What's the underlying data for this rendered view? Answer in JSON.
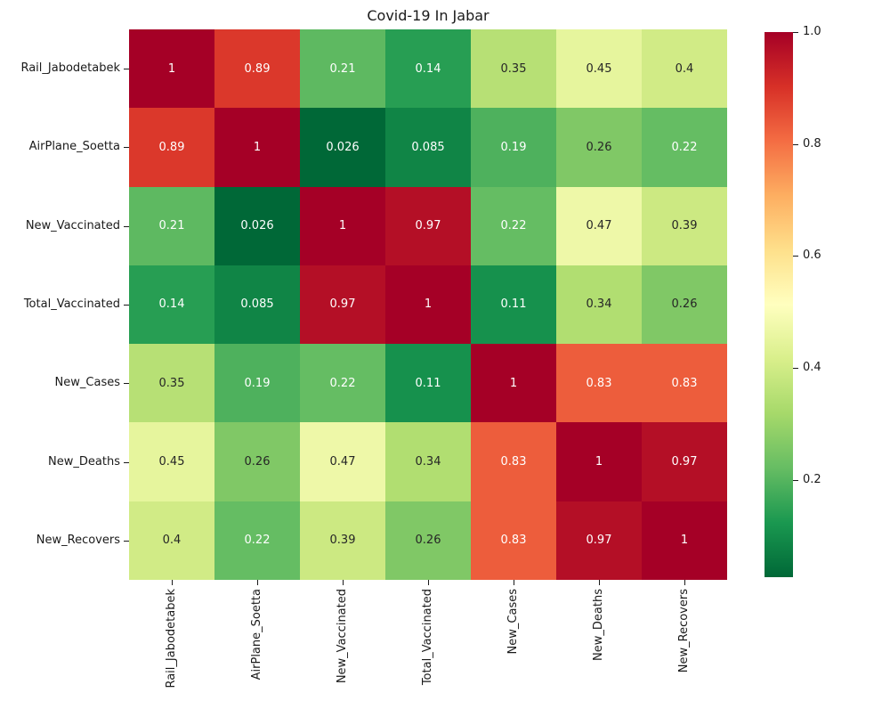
{
  "title": "Covid-19 In Jabar",
  "colors": {
    "background": "#ffffff",
    "axis_text": "#1a1a1a",
    "annotation_dark": "#262626",
    "annotation_light": "#ffffff"
  },
  "chart_data": {
    "type": "heatmap",
    "subtype": "correlation-matrix",
    "title": "Covid-19 In Jabar",
    "xlabel": "",
    "ylabel": "",
    "grid": false,
    "categories": [
      "Rail_Jabodetabek",
      "AirPlane_Soetta",
      "New_Vaccinated",
      "Total_Vaccinated",
      "New_Cases",
      "New_Deaths",
      "New_Recovers"
    ],
    "matrix": [
      [
        1,
        0.89,
        0.21,
        0.14,
        0.35,
        0.45,
        0.4
      ],
      [
        0.89,
        1,
        0.026,
        0.085,
        0.19,
        0.26,
        0.22
      ],
      [
        0.21,
        0.026,
        1,
        0.97,
        0.22,
        0.47,
        0.39
      ],
      [
        0.14,
        0.085,
        0.97,
        1,
        0.11,
        0.34,
        0.26
      ],
      [
        0.35,
        0.19,
        0.22,
        0.11,
        1,
        0.83,
        0.83
      ],
      [
        0.45,
        0.26,
        0.47,
        0.34,
        0.83,
        1,
        0.97
      ],
      [
        0.4,
        0.22,
        0.39,
        0.26,
        0.83,
        0.97,
        1
      ]
    ],
    "annotation_format": ".2g",
    "vmin": 0.026,
    "vmax": 1.0,
    "colormap_name": "RdYlGn_r",
    "colormap_stops_top_to_bottom": [
      "#a50026",
      "#d73027",
      "#f46d43",
      "#fdae61",
      "#fee08b",
      "#ffffbf",
      "#d9ef8b",
      "#a6d96a",
      "#66bd63",
      "#1a9850",
      "#006837"
    ],
    "colorbar": {
      "position": "right",
      "ticks": [
        1.0,
        0.8,
        0.6,
        0.4,
        0.2
      ],
      "tick_labels": [
        "1.0",
        "0.8",
        "0.6",
        "0.4",
        "0.2"
      ]
    }
  }
}
